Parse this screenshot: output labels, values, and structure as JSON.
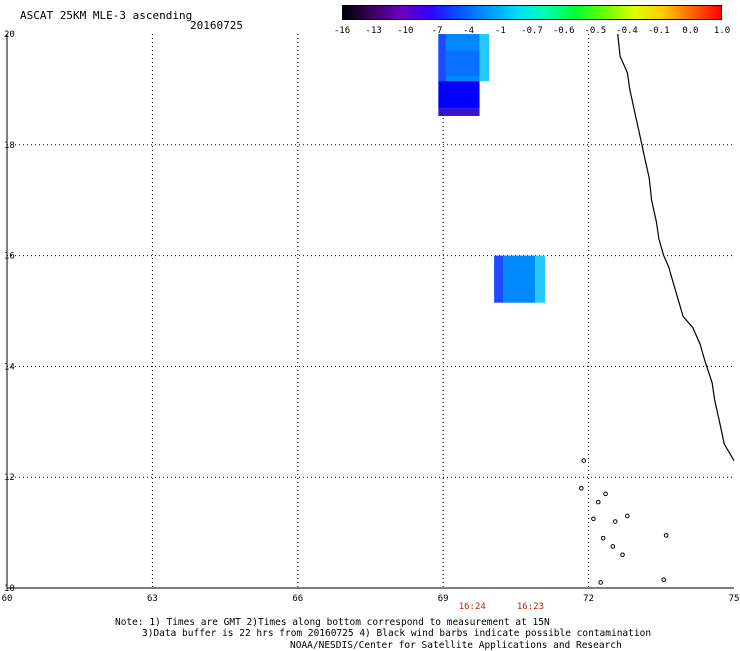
{
  "header": {
    "title": "ASCAT 25KM MLE-3 ascending",
    "date": "20160725"
  },
  "colorbar": {
    "labels": [
      "-16",
      "-13",
      "-10",
      "-7",
      "-4",
      "-1",
      "-0.7",
      "-0.6",
      "-0.5",
      "-0.4",
      "-0.1",
      "0.0",
      "1.0"
    ],
    "colors": [
      "#000000",
      "#3a0060",
      "#6a00c0",
      "#3300ff",
      "#0055ff",
      "#0099ff",
      "#00ddff",
      "#00ffaa",
      "#00ff33",
      "#66ff00",
      "#ddff00",
      "#ffcc00",
      "#ff6600",
      "#ff0000"
    ]
  },
  "map": {
    "lon_labels": [
      "60",
      "63",
      "66",
      "69",
      "72",
      "75"
    ],
    "lat_labels": [
      "20",
      "18",
      "16",
      "14",
      "12",
      "10"
    ],
    "data_cells": [
      {
        "lon0": 68.9,
        "lon1": 69.75,
        "lat0": 19.15,
        "lat1": 20.0,
        "color": "#0088ff"
      },
      {
        "lon0": 68.9,
        "lon1": 69.05,
        "lat0": 19.15,
        "lat1": 20.0,
        "color": "#1e4bff"
      },
      {
        "lon0": 69.75,
        "lon1": 69.95,
        "lat0": 19.15,
        "lat1": 20.0,
        "color": "#22c8ff"
      },
      {
        "lon0": 69.05,
        "lon1": 69.75,
        "lat0": 19.25,
        "lat1": 19.7,
        "color": "#0a70ff"
      },
      {
        "lon0": 68.9,
        "lon1": 69.75,
        "lat0": 18.65,
        "lat1": 19.15,
        "color": "#0000ff"
      },
      {
        "lon0": 68.9,
        "lon1": 69.75,
        "lat0": 18.52,
        "lat1": 18.65,
        "color": "#3a14c8"
      },
      {
        "lon0": 70.05,
        "lon1": 70.25,
        "lat0": 15.15,
        "lat1": 16.0,
        "color": "#1e4bff"
      },
      {
        "lon0": 70.25,
        "lon1": 70.9,
        "lat0": 15.15,
        "lat1": 16.0,
        "color": "#0088ff"
      },
      {
        "lon0": 70.9,
        "lon1": 71.1,
        "lat0": 15.15,
        "lat1": 16.0,
        "color": "#22c8ff"
      }
    ],
    "coastline": [
      [
        72.6,
        20.0
      ],
      [
        72.65,
        19.6
      ],
      [
        72.8,
        19.3
      ],
      [
        72.85,
        19.0
      ],
      [
        72.95,
        18.6
      ],
      [
        73.05,
        18.2
      ],
      [
        73.15,
        17.8
      ],
      [
        73.25,
        17.4
      ],
      [
        73.3,
        17.0
      ],
      [
        73.4,
        16.6
      ],
      [
        73.45,
        16.3
      ],
      [
        73.55,
        16.0
      ],
      [
        73.65,
        15.8
      ],
      [
        73.75,
        15.5
      ],
      [
        73.85,
        15.2
      ],
      [
        73.95,
        14.9
      ],
      [
        74.15,
        14.7
      ],
      [
        74.3,
        14.4
      ],
      [
        74.4,
        14.1
      ],
      [
        74.55,
        13.7
      ],
      [
        74.6,
        13.4
      ],
      [
        74.7,
        13.0
      ],
      [
        74.8,
        12.6
      ],
      [
        75.0,
        12.3
      ]
    ],
    "islands": [
      [
        71.9,
        12.3
      ],
      [
        71.85,
        11.8
      ],
      [
        72.2,
        11.55
      ],
      [
        72.1,
        11.25
      ],
      [
        72.35,
        11.7
      ],
      [
        72.55,
        11.2
      ],
      [
        72.3,
        10.9
      ],
      [
        72.5,
        10.75
      ],
      [
        72.7,
        10.6
      ],
      [
        72.8,
        11.3
      ],
      [
        73.6,
        10.95
      ],
      [
        72.25,
        10.1
      ],
      [
        73.55,
        10.15
      ]
    ],
    "time_labels": [
      {
        "text": "16:24",
        "lon": 69.6
      },
      {
        "text": "16:23",
        "lon": 70.8
      }
    ]
  },
  "footer": {
    "note_line1": "Note: 1) Times are GMT 2)Times along bottom correspond to measurement at 15N",
    "note_line2": "3)Data buffer is 22 hrs from 20160725 4) Black wind barbs indicate possible contamination",
    "credit": "NOAA/NESDIS/Center for Satellite Applications and Research"
  }
}
